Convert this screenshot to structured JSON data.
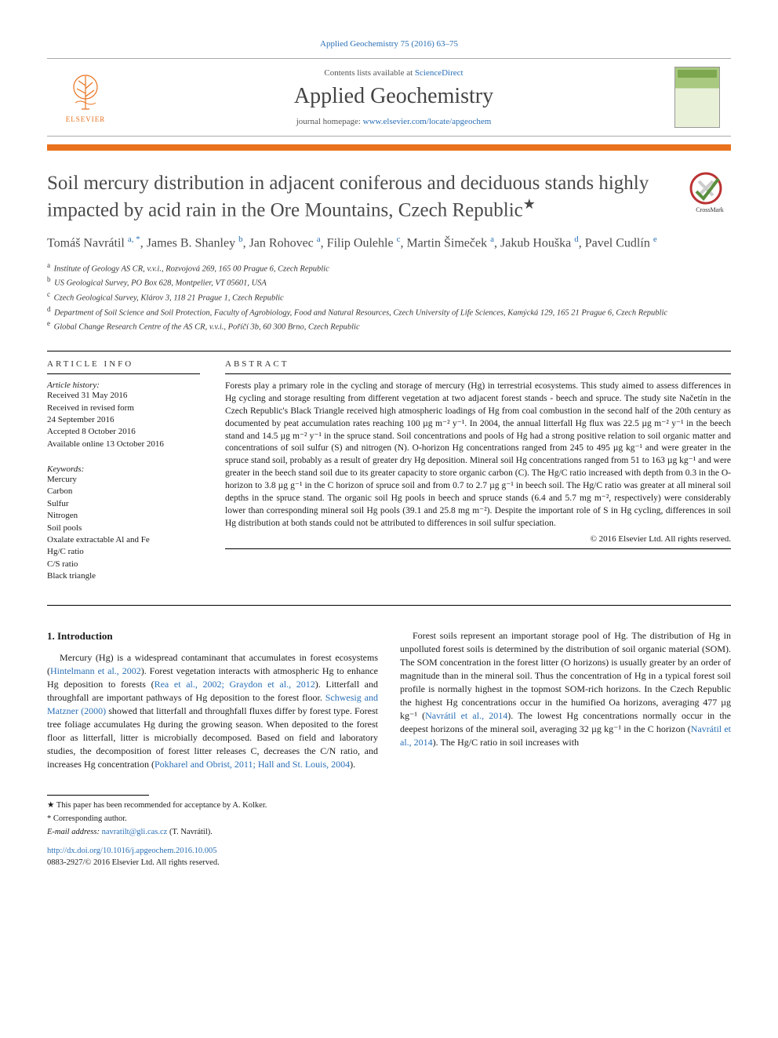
{
  "colors": {
    "link": "#2a6fb5",
    "brand_orange": "#e9711c",
    "text": "#1a1a1a",
    "muted": "#4a4a4a"
  },
  "journal_ref": "Applied Geochemistry 75 (2016) 63–75",
  "header": {
    "contents_prefix": "Contents lists available at ",
    "contents_link": "ScienceDirect",
    "journal_title": "Applied Geochemistry",
    "homepage_prefix": "journal homepage: ",
    "homepage_url": "www.elsevier.com/locate/apgeochem",
    "publisher": "ELSEVIER"
  },
  "crossmark_label": "CrossMark",
  "article": {
    "title": "Soil mercury distribution in adjacent coniferous and deciduous stands highly impacted by acid rain in the Ore Mountains, Czech Republic",
    "title_star": "★",
    "authors_html": "Tomáš Navrátil <sup>a, *</sup>, James B. Shanley <sup>b</sup>, Jan Rohovec <sup>a</sup>, Filip Oulehle <sup>c</sup>, Martin Šimeček <sup>a</sup>, Jakub Houška <sup>d</sup>, Pavel Cudlín <sup>e</sup>",
    "affiliations": [
      {
        "sup": "a",
        "text": "Institute of Geology AS CR, v.v.i., Rozvojová 269, 165 00 Prague 6, Czech Republic"
      },
      {
        "sup": "b",
        "text": "US Geological Survey, PO Box 628, Montpelier, VT 05601, USA"
      },
      {
        "sup": "c",
        "text": "Czech Geological Survey, Klárov 3, 118 21 Prague 1, Czech Republic"
      },
      {
        "sup": "d",
        "text": "Department of Soil Science and Soil Protection, Faculty of Agrobiology, Food and Natural Resources, Czech University of Life Sciences, Kamýcká 129, 165 21 Prague 6, Czech Republic"
      },
      {
        "sup": "e",
        "text": "Global Change Research Centre of the AS CR, v.v.i., Poříčí 3b, 60 300 Brno, Czech Republic"
      }
    ]
  },
  "info": {
    "section_title": "ARTICLE INFO",
    "history_label": "Article history:",
    "history": [
      "Received 31 May 2016",
      "Received in revised form",
      "24 September 2016",
      "Accepted 8 October 2016",
      "Available online 13 October 2016"
    ],
    "keywords_label": "Keywords:",
    "keywords": [
      "Mercury",
      "Carbon",
      "Sulfur",
      "Nitrogen",
      "Soil pools",
      "Oxalate extractable Al and Fe",
      "Hg/C ratio",
      "C/S ratio",
      "Black triangle"
    ]
  },
  "abstract": {
    "section_title": "ABSTRACT",
    "text": "Forests play a primary role in the cycling and storage of mercury (Hg) in terrestrial ecosystems. This study aimed to assess differences in Hg cycling and storage resulting from different vegetation at two adjacent forest stands - beech and spruce. The study site Načetín in the Czech Republic's Black Triangle received high atmospheric loadings of Hg from coal combustion in the second half of the 20th century as documented by peat accumulation rates reaching 100 µg m⁻² y⁻¹. In 2004, the annual litterfall Hg flux was 22.5 µg m⁻² y⁻¹ in the beech stand and 14.5 µg m⁻² y⁻¹ in the spruce stand. Soil concentrations and pools of Hg had a strong positive relation to soil organic matter and concentrations of soil sulfur (S) and nitrogen (N). O-horizon Hg concentrations ranged from 245 to 495 µg kg⁻¹ and were greater in the spruce stand soil, probably as a result of greater dry Hg deposition. Mineral soil Hg concentrations ranged from 51 to 163 µg kg⁻¹ and were greater in the beech stand soil due to its greater capacity to store organic carbon (C). The Hg/C ratio increased with depth from 0.3 in the O-horizon to 3.8 µg g⁻¹ in the C horizon of spruce soil and from 0.7 to 2.7 µg g⁻¹ in beech soil. The Hg/C ratio was greater at all mineral soil depths in the spruce stand. The organic soil Hg pools in beech and spruce stands (6.4 and 5.7 mg m⁻², respectively) were considerably lower than corresponding mineral soil Hg pools (39.1 and 25.8 mg m⁻²). Despite the important role of S in Hg cycling, differences in soil Hg distribution at both stands could not be attributed to differences in soil sulfur speciation.",
    "copyright": "© 2016 Elsevier Ltd. All rights reserved."
  },
  "body": {
    "section_number": "1.",
    "section_title": "Introduction",
    "p1_a": "Mercury (Hg) is a widespread contaminant that accumulates in forest ecosystems (",
    "p1_c1": "Hintelmann et al., 2002",
    "p1_b": "). Forest vegetation interacts with atmospheric Hg to enhance Hg deposition to forests (",
    "p1_c2": "Rea et al., 2002; Graydon et al., 2012",
    "p1_c": "). Litterfall and throughfall are important pathways of Hg deposition to the forest floor. ",
    "p1_c3": "Schwesig and Matzner (2000)",
    "p1_d": " showed that litterfall and throughfall fluxes differ by forest type. Forest tree foliage accumulates Hg during the growing season. When deposited to the forest floor as litterfall, litter is microbially decomposed. Based on field and laboratory studies, the decomposition of forest litter releases C, decreases the C/N ratio, and increases Hg concentration (",
    "p1_c4": "Pokharel and Obrist, 2011; Hall and St. Louis, 2004",
    "p1_e": ").",
    "p2_a": "Forest soils represent an important storage pool of Hg. The distribution of Hg in unpolluted forest soils is determined by the distribution of soil organic material (SOM). The SOM concentration in the forest litter (O horizons) is usually greater by an order of magnitude than in the mineral soil. Thus the concentration of Hg in a typical forest soil profile is normally highest in the topmost SOM-rich horizons. In the Czech Republic the highest Hg concentrations occur in the humified Oa horizons, averaging 477 µg kg⁻¹ (",
    "p2_c1": "Navrátil et al., 2014",
    "p2_b": "). The lowest Hg concentrations normally occur in the deepest horizons of the mineral soil, averaging 32 µg kg⁻¹ in the C horizon (",
    "p2_c2": "Navrátil et al., 2014",
    "p2_c": "). The Hg/C ratio in soil increases with"
  },
  "footnotes": {
    "star": "★ This paper has been recommended for acceptance by A. Kolker.",
    "corr": "* Corresponding author.",
    "email_label": "E-mail address: ",
    "email": "navratilt@gli.cas.cz",
    "email_suffix": " (T. Navrátil)."
  },
  "footer": {
    "doi": "http://dx.doi.org/10.1016/j.apgeochem.2016.10.005",
    "issn_line": "0883-2927/© 2016 Elsevier Ltd. All rights reserved."
  }
}
